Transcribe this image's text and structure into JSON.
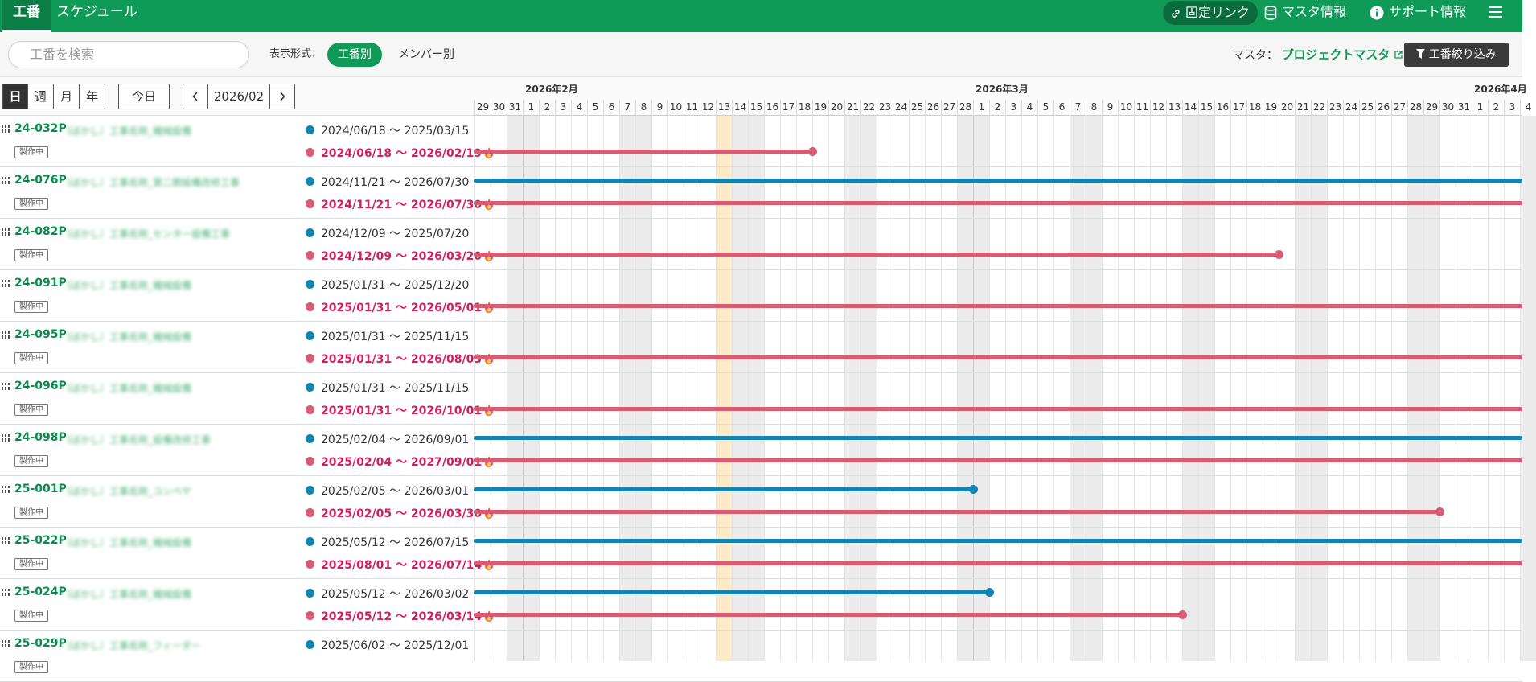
{
  "nav": {
    "tabs": [
      {
        "label": "工番",
        "active": true
      },
      {
        "label": "スケジュール",
        "active": false
      }
    ],
    "fixed_link": "固定リンク",
    "master_info": "マスタ情報",
    "support_info": "サポート情報"
  },
  "toolbar": {
    "search_placeholder": "工番を検索",
    "display_label": "表示形式：",
    "mode_by_job": "工番別",
    "mode_by_member": "メンバー別",
    "master_label": "マスタ：",
    "master_link": "プロジェクトマスタ",
    "filter_button": "工番絞り込み"
  },
  "controls": {
    "day": "日",
    "week": "週",
    "month": "月",
    "year": "年",
    "today": "今日",
    "current_month": "2026/02"
  },
  "gantt": {
    "months": [
      "2026年2月",
      "2026年3月",
      "2026年4月"
    ],
    "start_date": "2026-01-29",
    "today": "2026-02-13",
    "colors": {
      "plan": "#1184b3",
      "actual": "#db5c72",
      "weekend": "#ececec",
      "today": "#fdebc8"
    }
  },
  "status_label": "製作中",
  "tilde": "〜",
  "rows": [
    {
      "code": "24-032P",
      "name": "（ぼかし）工事名称_機械設備",
      "plan_start": "2024/06/18",
      "plan_end": "2025/03/15",
      "act_start": "2024/06/18",
      "act_end": "2026/02/19"
    },
    {
      "code": "24-076P",
      "name": "（ぼかし）工事名称_第二期設備改修工事",
      "plan_start": "2024/11/21",
      "plan_end": "2026/07/30",
      "act_start": "2024/11/21",
      "act_end": "2026/07/30"
    },
    {
      "code": "24-082P",
      "name": "（ぼかし）工事名称_センター設備工事",
      "plan_start": "2024/12/09",
      "plan_end": "2025/07/20",
      "act_start": "2024/12/09",
      "act_end": "2026/03/20"
    },
    {
      "code": "24-091P",
      "name": "（ぼかし）工事名称_機械設備",
      "plan_start": "2025/01/31",
      "plan_end": "2025/12/20",
      "act_start": "2025/01/31",
      "act_end": "2026/05/01"
    },
    {
      "code": "24-095P",
      "name": "（ぼかし）工事名称_機械設備",
      "plan_start": "2025/01/31",
      "plan_end": "2025/11/15",
      "act_start": "2025/01/31",
      "act_end": "2026/08/03"
    },
    {
      "code": "24-096P",
      "name": "（ぼかし）工事名称_機械設備",
      "plan_start": "2025/01/31",
      "plan_end": "2025/11/15",
      "act_start": "2025/01/31",
      "act_end": "2026/10/01"
    },
    {
      "code": "24-098P",
      "name": "（ぼかし）工事名称_設備改修工事",
      "plan_start": "2025/02/04",
      "plan_end": "2026/09/01",
      "act_start": "2025/02/04",
      "act_end": "2027/09/01"
    },
    {
      "code": "25-001P",
      "name": "（ぼかし）工事名称_コンベヤ",
      "plan_start": "2025/02/05",
      "plan_end": "2026/03/01",
      "act_start": "2025/02/05",
      "act_end": "2026/03/30"
    },
    {
      "code": "25-022P",
      "name": "（ぼかし）工事名称_機械設備",
      "plan_start": "2025/05/12",
      "plan_end": "2026/07/15",
      "act_start": "2025/08/01",
      "act_end": "2026/07/14"
    },
    {
      "code": "25-024P",
      "name": "（ぼかし）工事名称_機械設備",
      "plan_start": "2025/05/12",
      "plan_end": "2026/03/02",
      "act_start": "2025/05/12",
      "act_end": "2026/03/14"
    },
    {
      "code": "25-029P",
      "name": "（ぼかし）工事名称_フィーダー",
      "plan_start": "2025/06/02",
      "plan_end": "2025/12/01",
      "act_start": "",
      "act_end": ""
    }
  ]
}
